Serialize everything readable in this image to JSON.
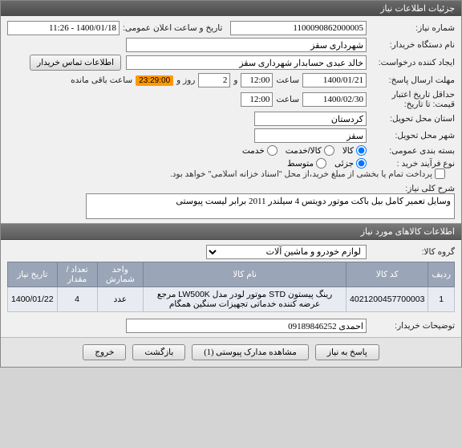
{
  "titlebar": "جزئیات اطلاعات نیاز",
  "labels": {
    "req_no": "شماره نیاز:",
    "announce": "تاریخ و ساعت اعلان عمومی:",
    "buyer_org": "نام دستگاه خریدار:",
    "creator": "ایجاد کننده درخواست:",
    "contact_btn": "اطلاعات تماس خریدار",
    "deadline": "مهلت ارسال پاسخ:",
    "to_date": "تا تاریخ:",
    "hour": "ساعت",
    "and": "و",
    "day": "روز و",
    "remain": "ساعت باقی مانده",
    "min_valid": "حداقل تاریخ اعتبار قیمت: تا تاریخ:",
    "province": "استان محل تحویل:",
    "city": "شهر محل تحویل:",
    "pkg": "بسته بندی عمومی:",
    "pkg_goods": "کالا",
    "pkg_goods_srv": "کالا/خدمت",
    "pkg_srv": "خدمت",
    "buy_type": "نوع فرآیند خرید :",
    "buy_partial": "جزئی",
    "buy_medium": "متوسط",
    "pay_note": "پرداخت تمام یا بخشی از مبلغ خرید،از محل \"اسناد خزانه اسلامی\" خواهد بود.",
    "req_title": "شرح کلی نیاز:",
    "items_hdr": "اطلاعات کالاهای مورد نیاز",
    "item_group": "گروه کالا:",
    "buyer_notes": "توضیحات خریدار:"
  },
  "values": {
    "req_no": "1100090862000005",
    "announce": "1400/01/18 - 11:26",
    "buyer_org": "شهرداری سقز",
    "creator": "خالد عبدی حسابدار شهرداری سقز",
    "deadline_date": "1400/01/21",
    "deadline_time": "12:00",
    "remain_days": "2",
    "remain_time": "23:29:00",
    "valid_date": "1400/02/30",
    "valid_time": "12:00",
    "province": "کردستان",
    "city": "سقز",
    "pkg_sel": "goods",
    "buy_sel": "partial",
    "pay_checked": false,
    "req_title": "وسایل تعمیر کامل بیل باکت موتور دویتس 4 سیلندر 2011 برابر لیست پیوستی",
    "item_group": "لوازم خودرو و ماشین آلات",
    "buyer_notes": "احمدی 09189846252"
  },
  "table": {
    "cols": [
      "ردیف",
      "کد کالا",
      "نام کالا",
      "واحد شمارش",
      "تعداد / مقدار",
      "تاریخ نیاز"
    ],
    "rows": [
      [
        "1",
        "4021200457700003",
        "رینگ پیستون STD موتور لودر مدل LW500K مرجع عرضه کننده خدماتی تجهیزات سنگین همگام",
        "عدد",
        "4",
        "1400/01/22"
      ]
    ]
  },
  "buttons": {
    "answer": "پاسخ به نیاز",
    "attach": "مشاهده مدارک پیوستی (1)",
    "back": "بازگشت",
    "exit": "خروج"
  }
}
